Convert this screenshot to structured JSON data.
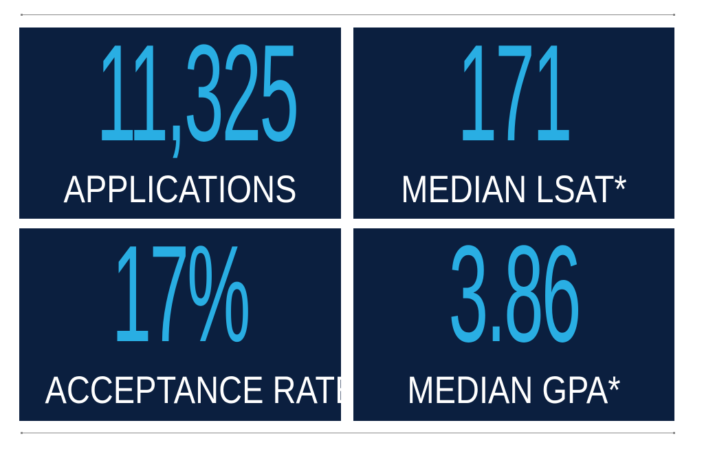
{
  "colors": {
    "tile_background": "#0b1f3f",
    "value_color": "#29aee3",
    "label_color": "#ffffff",
    "rule_color": "#8a8a8a"
  },
  "stats": [
    {
      "value": "11,325",
      "label": "APPLICATIONS"
    },
    {
      "value": "171",
      "label": "MEDIAN LSAT*"
    },
    {
      "value": "17%",
      "label": "ACCEPTANCE RATE"
    },
    {
      "value": "3.86",
      "label": "MEDIAN GPA*"
    }
  ]
}
